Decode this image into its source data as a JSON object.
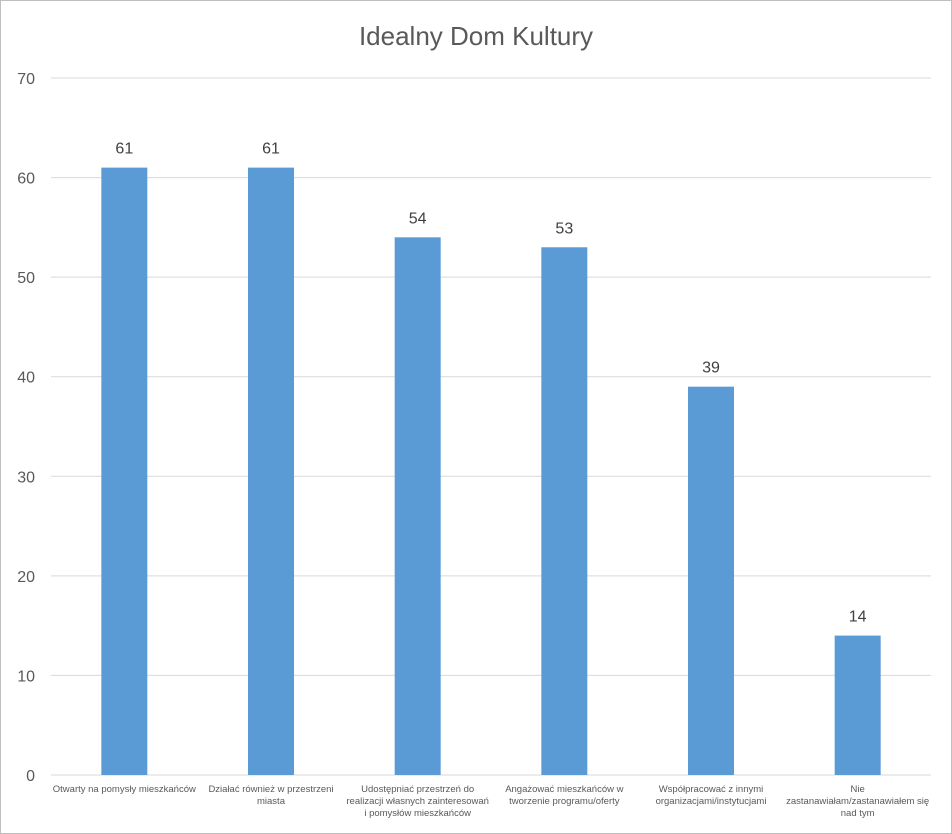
{
  "chart_data": {
    "type": "bar",
    "title": "Idealny Dom Kultury",
    "xlabel": "",
    "ylabel": "",
    "ylim": [
      0,
      70
    ],
    "yticks": [
      0,
      10,
      20,
      30,
      40,
      50,
      60,
      70
    ],
    "grid": true,
    "legend": "none",
    "categories": [
      [
        "Otwarty na pomysły mieszkańców"
      ],
      [
        "Działać również w przestrzeni",
        "miasta"
      ],
      [
        "Udostępniać przestrzeń do",
        "realizacji własnych zainteresowań",
        "i pomysłów mieszkańców"
      ],
      [
        "Angażować mieszkańców w",
        "tworzenie programu/oferty"
      ],
      [
        "Współpracować z innymi",
        "organizacjami/instytucjami"
      ],
      [
        "Nie",
        "zastanawiałam/zastanawiałem się",
        "nad tym"
      ]
    ],
    "values": [
      61,
      61,
      54,
      53,
      39,
      14
    ],
    "data_labels": [
      "61",
      "61",
      "54",
      "53",
      "39",
      "14"
    ],
    "colors": {
      "bar": "#5b9bd5",
      "grid": "#d9d9d9",
      "tick_text": "#595959",
      "label_text": "#404040"
    }
  }
}
